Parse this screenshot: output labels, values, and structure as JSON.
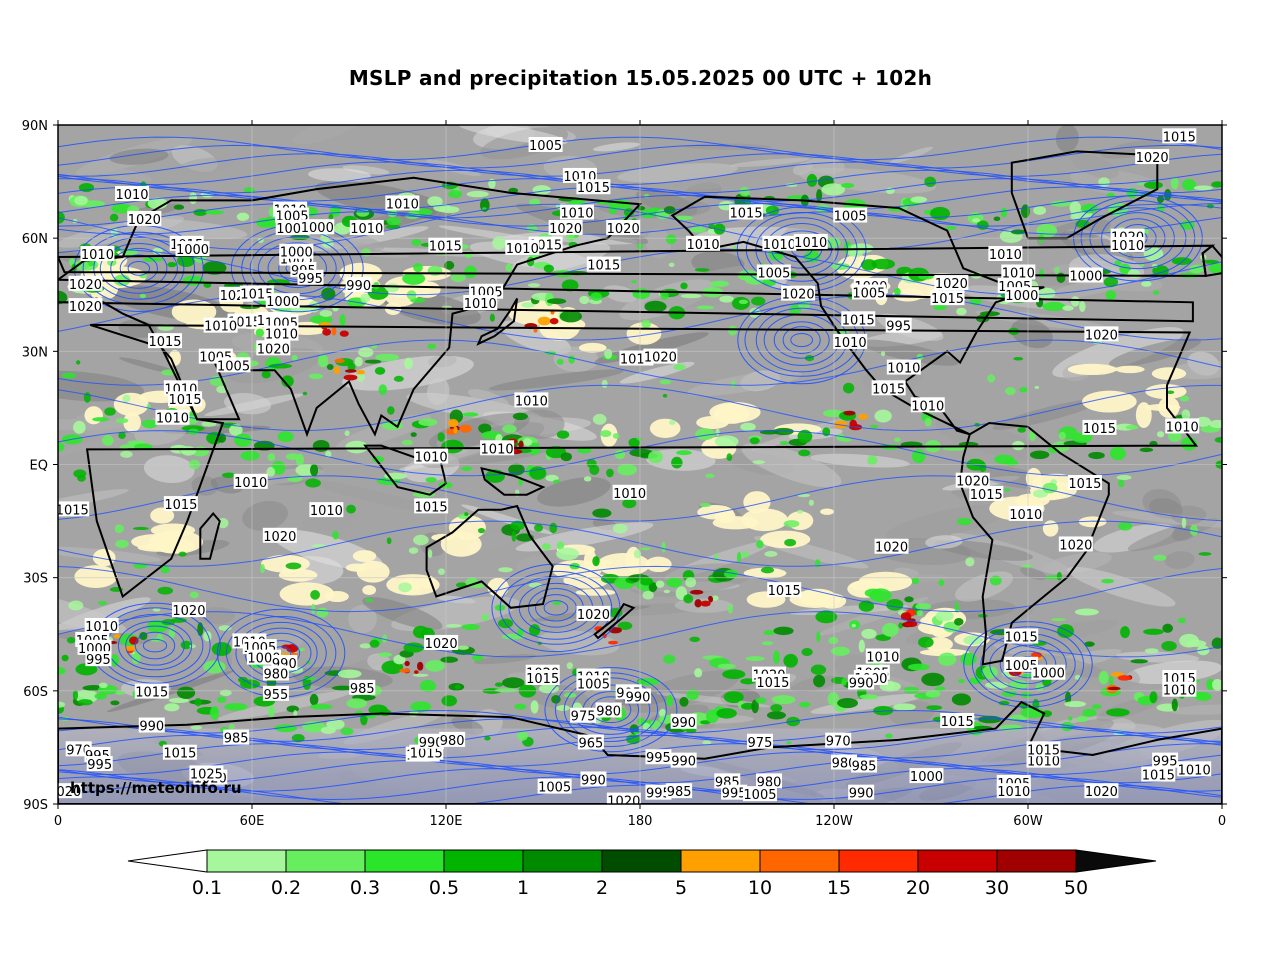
{
  "title": "MSLP and precipitation 15.05.2025 00 UTC + 102h",
  "credit": "https://meteoinfo.ru",
  "axes": {
    "lat_ticks": [
      "90N",
      "60N",
      "30N",
      "EQ",
      "30S",
      "60S",
      "90S"
    ],
    "lon_ticks": [
      "0",
      "60E",
      "120E",
      "180",
      "120W",
      "60W",
      "0"
    ]
  },
  "colorbar": {
    "unit_labels": [
      "0.1",
      "0.2",
      "0.3",
      "0.5",
      "1",
      "2",
      "5",
      "10",
      "15",
      "20",
      "30",
      "50"
    ],
    "colors": [
      "#a6f79b",
      "#67ee5f",
      "#2be52b",
      "#00b400",
      "#008a00",
      "#004d00",
      "#ff9f00",
      "#ff6600",
      "#ff2a00",
      "#c80000",
      "#a00000"
    ],
    "below_color": "#ffffff",
    "above_color": "#0a0a0a"
  },
  "colors": {
    "isobar": "#2050ff",
    "coastline": "#000000",
    "cloud_gray": "#9a9a9a",
    "clear_yellow": "#fff6c8"
  },
  "isobar_labels": [
    {
      "text": "1005",
      "lon": 150.8,
      "lat": 84.7
    },
    {
      "text": "1010",
      "lon": 106.5,
      "lat": 69.2
    },
    {
      "text": "1010",
      "lon": 161.4,
      "lat": 76.5
    },
    {
      "text": "1015",
      "lon": 165.6,
      "lat": 73.5
    },
    {
      "text": "1010",
      "lon": 22.9,
      "lat": 71.7
    },
    {
      "text": "1010",
      "lon": 160.5,
      "lat": 66.8
    },
    {
      "text": "1020",
      "lon": 26.7,
      "lat": 65.1
    },
    {
      "text": "1015",
      "lon": 212.8,
      "lat": 66.8
    },
    {
      "text": "1010",
      "lon": 71.8,
      "lat": 67.6
    },
    {
      "text": "1015",
      "lon": 39.8,
      "lat": 58.5
    },
    {
      "text": "1010",
      "lon": 12.2,
      "lat": 55.8
    },
    {
      "text": "1020",
      "lon": 157.0,
      "lat": 62.7
    },
    {
      "text": "1005",
      "lon": 72.4,
      "lat": 66.0
    },
    {
      "text": "1000",
      "lon": 72.6,
      "lat": 62.7
    },
    {
      "text": "1000",
      "lon": 41.6,
      "lat": 57.1
    },
    {
      "text": "1000",
      "lon": 80.2,
      "lat": 62.9
    },
    {
      "text": "1010",
      "lon": 95.5,
      "lat": 62.7
    },
    {
      "text": "1020",
      "lon": 174.8,
      "lat": 62.7
    },
    {
      "text": "1005",
      "lon": 73.7,
      "lat": 54.6
    },
    {
      "text": "995",
      "lon": 75.9,
      "lat": 51.6
    },
    {
      "text": "1000",
      "lon": 73.7,
      "lat": 56.4
    },
    {
      "text": "1015",
      "lon": 119.8,
      "lat": 58.0
    },
    {
      "text": "1015",
      "lon": 150.8,
      "lat": 58.3
    },
    {
      "text": "1010",
      "lon": 143.6,
      "lat": 57.4
    },
    {
      "text": "995",
      "lon": 78.1,
      "lat": 49.5
    },
    {
      "text": "990",
      "lon": 93.0,
      "lat": 47.6
    },
    {
      "text": "1015",
      "lon": 168.8,
      "lat": 53.0
    },
    {
      "text": "1005",
      "lon": 132.4,
      "lat": 45.8
    },
    {
      "text": "1010",
      "lon": 130.6,
      "lat": 42.8
    },
    {
      "text": "1020",
      "lon": 8.5,
      "lat": 47.9
    },
    {
      "text": "1020",
      "lon": 8.5,
      "lat": 42.0
    },
    {
      "text": "1020",
      "lon": 55.1,
      "lat": 45.0
    },
    {
      "text": "1015",
      "lon": 61.5,
      "lat": 45.3
    },
    {
      "text": "1015",
      "lon": 57.7,
      "lat": 37.9
    },
    {
      "text": "1020",
      "lon": 66.6,
      "lat": 38.3
    },
    {
      "text": "1000",
      "lon": 69.5,
      "lat": 43.3
    },
    {
      "text": "1005",
      "lon": 69.1,
      "lat": 37.7
    },
    {
      "text": "1010",
      "lon": 69.1,
      "lat": 34.7
    },
    {
      "text": "1010",
      "lon": 50.3,
      "lat": 36.8
    },
    {
      "text": "1020",
      "lon": 66.6,
      "lat": 30.8
    },
    {
      "text": "1015",
      "lon": 33.1,
      "lat": 32.7
    },
    {
      "text": "1005",
      "lon": 48.8,
      "lat": 28.6
    },
    {
      "text": "1005",
      "lon": 54.3,
      "lat": 26.3
    },
    {
      "text": "1010",
      "lon": 38.0,
      "lat": 20.2
    },
    {
      "text": "1015",
      "lon": 39.3,
      "lat": 17.3
    },
    {
      "text": "1010",
      "lon": 35.4,
      "lat": 12.4
    },
    {
      "text": "1010",
      "lon": 146.4,
      "lat": 17.0
    },
    {
      "text": "1010",
      "lon": 178.9,
      "lat": 28.1
    },
    {
      "text": "1020",
      "lon": 186.3,
      "lat": 28.6
    },
    {
      "text": "1010",
      "lon": 199.5,
      "lat": 58.5
    },
    {
      "text": "1005",
      "lon": 245.0,
      "lat": 66.0
    },
    {
      "text": "1010",
      "lon": 223.1,
      "lat": 58.5
    },
    {
      "text": "1010",
      "lon": 232.8,
      "lat": 59.0
    },
    {
      "text": "1005",
      "lon": 221.4,
      "lat": 50.9
    },
    {
      "text": "1020",
      "lon": 228.9,
      "lat": 45.3
    },
    {
      "text": "1000",
      "lon": 251.4,
      "lat": 47.3
    },
    {
      "text": "1005",
      "lon": 250.8,
      "lat": 45.6
    },
    {
      "text": "1015",
      "lon": 247.5,
      "lat": 38.5
    },
    {
      "text": "995",
      "lon": 260.0,
      "lat": 36.8
    },
    {
      "text": "1010",
      "lon": 245.0,
      "lat": 32.5
    },
    {
      "text": "1015",
      "lon": 275.1,
      "lat": 44.1
    },
    {
      "text": "1020",
      "lon": 276.3,
      "lat": 48.1
    },
    {
      "text": "1010",
      "lon": 261.6,
      "lat": 25.7
    },
    {
      "text": "1015",
      "lon": 256.9,
      "lat": 20.2
    },
    {
      "text": "1010",
      "lon": 269.0,
      "lat": 15.7
    },
    {
      "text": "1010",
      "lon": 293.0,
      "lat": 55.8
    },
    {
      "text": "1010",
      "lon": 297.0,
      "lat": 50.9
    },
    {
      "text": "1005",
      "lon": 295.9,
      "lat": 47.3
    },
    {
      "text": "1000",
      "lon": 298.1,
      "lat": 44.9
    },
    {
      "text": "1020",
      "lon": 338.4,
      "lat": 81.5
    },
    {
      "text": "1015",
      "lon": 346.8,
      "lat": 87.0
    },
    {
      "text": "1020",
      "lon": 330.8,
      "lat": 60.4
    },
    {
      "text": "1010",
      "lon": 330.8,
      "lat": 58.2
    },
    {
      "text": "1000",
      "lon": 317.9,
      "lat": 50.1
    },
    {
      "text": "1020",
      "lon": 322.7,
      "lat": 34.5
    },
    {
      "text": "1015",
      "lon": 322.1,
      "lat": 9.7
    },
    {
      "text": "1010",
      "lon": 347.7,
      "lat": 10.1
    },
    {
      "text": "1020",
      "lon": 282.9,
      "lat": -4.3
    },
    {
      "text": "1015",
      "lon": 287.1,
      "lat": -7.8
    },
    {
      "text": "1015",
      "lon": 317.6,
      "lat": -4.9
    },
    {
      "text": "1010",
      "lon": 299.3,
      "lat": -13.1
    },
    {
      "text": "1020",
      "lon": 314.8,
      "lat": -21.2
    },
    {
      "text": "1020",
      "lon": 257.8,
      "lat": -21.8
    },
    {
      "text": "1010",
      "lon": 59.6,
      "lat": -4.6
    },
    {
      "text": "1015",
      "lon": 4.4,
      "lat": -11.9
    },
    {
      "text": "1015",
      "lon": 38.0,
      "lat": -10.5
    },
    {
      "text": "1010",
      "lon": 83.0,
      "lat": -12.1
    },
    {
      "text": "1010",
      "lon": 115.4,
      "lat": 2.1
    },
    {
      "text": "1010",
      "lon": 135.8,
      "lat": 4.3
    },
    {
      "text": "1015",
      "lon": 115.4,
      "lat": -11.1
    },
    {
      "text": "1010",
      "lon": 176.8,
      "lat": -7.5
    },
    {
      "text": "1020",
      "lon": 68.6,
      "lat": -18.9
    },
    {
      "text": "1015",
      "lon": 224.6,
      "lat": -33.3
    },
    {
      "text": "1020",
      "lon": 165.6,
      "lat": -39.6
    },
    {
      "text": "1020",
      "lon": 40.5,
      "lat": -38.6
    },
    {
      "text": "1020",
      "lon": 118.5,
      "lat": -47.3
    },
    {
      "text": "1010",
      "lon": 13.5,
      "lat": -42.8
    },
    {
      "text": "1005",
      "lon": 10.6,
      "lat": -46.5
    },
    {
      "text": "1000",
      "lon": 11.3,
      "lat": -48.6
    },
    {
      "text": "995",
      "lon": 12.5,
      "lat": -51.6
    },
    {
      "text": "1010",
      "lon": 59.2,
      "lat": -46.9
    },
    {
      "text": "1005",
      "lon": 62.4,
      "lat": -48.4
    },
    {
      "text": "1000",
      "lon": 63.7,
      "lat": -51.2
    },
    {
      "text": "990",
      "lon": 70.0,
      "lat": -52.6
    },
    {
      "text": "980",
      "lon": 67.4,
      "lat": -55.4
    },
    {
      "text": "955",
      "lon": 67.4,
      "lat": -60.8
    },
    {
      "text": "1015",
      "lon": 29.0,
      "lat": -60.2
    },
    {
      "text": "985",
      "lon": 94.1,
      "lat": -59.2
    },
    {
      "text": "1020",
      "lon": 149.9,
      "lat": -55.2
    },
    {
      "text": "1015",
      "lon": 149.9,
      "lat": -56.6
    },
    {
      "text": "1010",
      "lon": 165.6,
      "lat": -56.2
    },
    {
      "text": "1005",
      "lon": 165.6,
      "lat": -58.0
    },
    {
      "text": "995",
      "lon": 176.5,
      "lat": -60.4
    },
    {
      "text": "990",
      "lon": 179.4,
      "lat": -61.5
    },
    {
      "text": "980",
      "lon": 170.3,
      "lat": -65.2
    },
    {
      "text": "975",
      "lon": 162.4,
      "lat": -66.6
    },
    {
      "text": "965",
      "lon": 164.8,
      "lat": -73.7
    },
    {
      "text": "990",
      "lon": 193.5,
      "lat": -68.2
    },
    {
      "text": "1020",
      "lon": 219.9,
      "lat": -55.7
    },
    {
      "text": "1015",
      "lon": 221.1,
      "lat": -57.6
    },
    {
      "text": "1010",
      "lon": 255.1,
      "lat": -50.9
    },
    {
      "text": "1005",
      "lon": 252.0,
      "lat": -55.2
    },
    {
      "text": "1000",
      "lon": 251.4,
      "lat": -56.6
    },
    {
      "text": "990",
      "lon": 248.4,
      "lat": -57.8
    },
    {
      "text": "1015",
      "lon": 297.9,
      "lat": -45.6
    },
    {
      "text": "1005",
      "lon": 297.9,
      "lat": -53.1
    },
    {
      "text": "1000",
      "lon": 306.3,
      "lat": -55.2
    },
    {
      "text": "1015",
      "lon": 346.8,
      "lat": -56.6
    },
    {
      "text": "1010",
      "lon": 346.8,
      "lat": -59.7
    },
    {
      "text": "1015",
      "lon": 278.1,
      "lat": -68.0
    },
    {
      "text": "975",
      "lon": 217.1,
      "lat": -73.5
    },
    {
      "text": "970",
      "lon": 241.3,
      "lat": -73.2
    },
    {
      "text": "995",
      "lon": 185.7,
      "lat": -77.6
    },
    {
      "text": "980",
      "lon": 243.1,
      "lat": -79.0
    },
    {
      "text": "985",
      "lon": 249.3,
      "lat": -79.8
    },
    {
      "text": "980",
      "lon": 219.9,
      "lat": -84.0
    },
    {
      "text": "985",
      "lon": 207.0,
      "lat": -84.0
    },
    {
      "text": "990",
      "lon": 193.5,
      "lat": -78.5
    },
    {
      "text": "1020",
      "lon": 112.8,
      "lat": -76.9
    },
    {
      "text": "1015",
      "lon": 113.9,
      "lat": -76.4
    },
    {
      "text": "990",
      "lon": 115.4,
      "lat": -73.5
    },
    {
      "text": "985",
      "lon": 55.1,
      "lat": -72.4
    },
    {
      "text": "980",
      "lon": 121.9,
      "lat": -73.0
    },
    {
      "text": "990",
      "lon": 29.0,
      "lat": -69.2
    },
    {
      "text": "1015",
      "lon": 37.7,
      "lat": -76.4
    },
    {
      "text": "1020",
      "lon": 47.1,
      "lat": -83.0
    },
    {
      "text": "1025",
      "lon": 45.9,
      "lat": -81.9
    },
    {
      "text": "970",
      "lon": 6.4,
      "lat": -75.5
    },
    {
      "text": "995",
      "lon": 12.2,
      "lat": -77.0
    },
    {
      "text": "995",
      "lon": 12.9,
      "lat": -79.4
    },
    {
      "text": "1020",
      "lon": 2.1,
      "lat": -86.6
    },
    {
      "text": "1005",
      "lon": 153.6,
      "lat": -85.4
    },
    {
      "text": "990",
      "lon": 165.6,
      "lat": -83.5
    },
    {
      "text": "1020",
      "lon": 175.0,
      "lat": -89.1
    },
    {
      "text": "995",
      "lon": 185.7,
      "lat": -87.0
    },
    {
      "text": "985",
      "lon": 192.1,
      "lat": -86.6
    },
    {
      "text": "995",
      "lon": 209.1,
      "lat": -87.0
    },
    {
      "text": "1005",
      "lon": 217.1,
      "lat": -87.4
    },
    {
      "text": "990",
      "lon": 248.4,
      "lat": -87.0
    },
    {
      "text": "1000",
      "lon": 268.6,
      "lat": -82.6
    },
    {
      "text": "1005",
      "lon": 295.6,
      "lat": -84.4
    },
    {
      "text": "1010",
      "lon": 295.6,
      "lat": -86.6
    },
    {
      "text": "1010",
      "lon": 304.8,
      "lat": -78.5
    },
    {
      "text": "1015",
      "lon": 304.8,
      "lat": -75.5
    },
    {
      "text": "1020",
      "lon": 322.7,
      "lat": -86.6
    },
    {
      "text": "1015",
      "lon": 340.3,
      "lat": -82.2
    },
    {
      "text": "995",
      "lon": 342.4,
      "lat": -78.5
    },
    {
      "text": "1010",
      "lon": 351.4,
      "lat": -80.8
    }
  ],
  "pressure_centers": [
    {
      "lon": 69,
      "lat": -50
    },
    {
      "lon": 300,
      "lat": -53
    },
    {
      "lon": 171,
      "lat": -65
    },
    {
      "lon": 230,
      "lat": 57
    },
    {
      "lon": 74,
      "lat": 52
    },
    {
      "lon": 154,
      "lat": -38
    },
    {
      "lon": 30,
      "lat": -48
    },
    {
      "lon": 334,
      "lat": 60
    },
    {
      "lon": 25,
      "lat": 52
    },
    {
      "lon": 230,
      "lat": 33
    }
  ]
}
